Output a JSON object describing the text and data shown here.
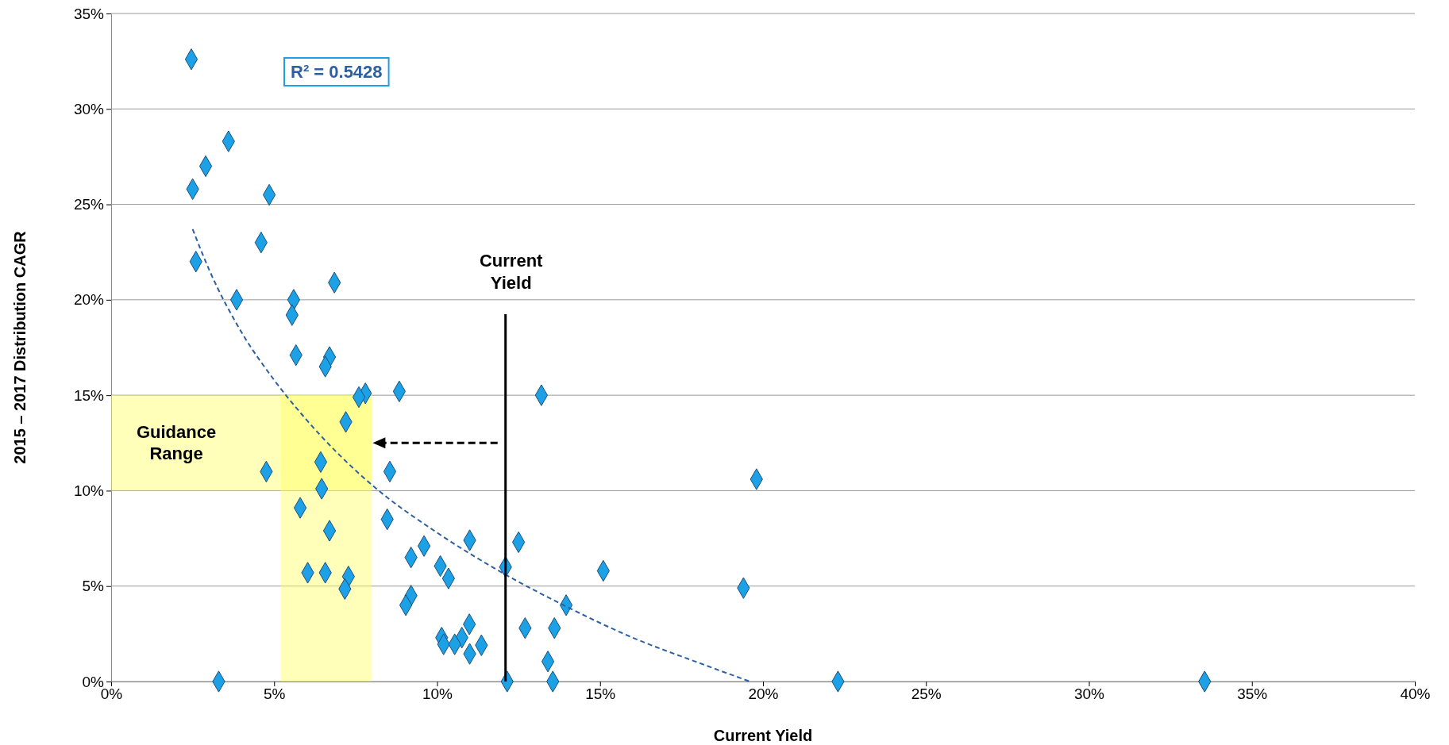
{
  "chart_data": {
    "type": "scatter",
    "xlabel": "Current Yield",
    "ylabel": "2015 – 2017 Distribution CAGR",
    "marker": "diamond",
    "grid": "y",
    "xlim": [
      0,
      40
    ],
    "xticks": [
      {
        "value": 0,
        "label": "0%"
      },
      {
        "value": 5,
        "label": "5%"
      },
      {
        "value": 10,
        "label": "10%"
      },
      {
        "value": 15,
        "label": "15%"
      },
      {
        "value": 20,
        "label": "20%"
      },
      {
        "value": 25,
        "label": "25%"
      },
      {
        "value": 30,
        "label": "30%"
      },
      {
        "value": 35,
        "label": "35%"
      },
      {
        "value": 40,
        "label": "40%"
      }
    ],
    "ylim": [
      0,
      35
    ],
    "yticks": [
      {
        "value": 0,
        "label": "0%"
      },
      {
        "value": 5,
        "label": "5%"
      },
      {
        "value": 10,
        "label": "10%"
      },
      {
        "value": 15,
        "label": "15%"
      },
      {
        "value": 20,
        "label": "20%"
      },
      {
        "value": 25,
        "label": "25%"
      },
      {
        "value": 30,
        "label": "30%"
      },
      {
        "value": 35,
        "label": "35%"
      }
    ],
    "series": [
      {
        "color": "#1ca0e6",
        "x": [
          2.46,
          3.6,
          2.9,
          2.5,
          4.85,
          4.6,
          2.6,
          3.85,
          5.6,
          6.85,
          5.55,
          5.67,
          6.7,
          6.57,
          7.8,
          7.6,
          8.84,
          13.2,
          7.2,
          6.43,
          4.76,
          8.55,
          19.8,
          6.46,
          5.8,
          8.47,
          6.7,
          9.6,
          11.0,
          12.5,
          9.2,
          10.1,
          12.1,
          15.1,
          10.35,
          6.03,
          6.57,
          7.28,
          7.17,
          19.4,
          9.2,
          9.04,
          13.96,
          10.99,
          12.7,
          13.6,
          10.14,
          10.76,
          10.2,
          10.54,
          11.36,
          11.0,
          13.4,
          3.3,
          12.15,
          13.55,
          22.3,
          33.55
        ],
        "values": [
          32.6,
          28.3,
          27.0,
          25.8,
          25.5,
          23.0,
          22.0,
          20.0,
          20.0,
          20.9,
          19.2,
          17.1,
          17.0,
          16.5,
          15.1,
          14.9,
          15.2,
          15.0,
          13.6,
          11.5,
          11.0,
          11.0,
          10.6,
          10.1,
          9.1,
          8.5,
          7.9,
          7.1,
          7.4,
          7.3,
          6.5,
          6.05,
          6.0,
          5.8,
          5.4,
          5.7,
          5.7,
          5.5,
          4.85,
          4.9,
          4.5,
          4.0,
          4.0,
          3.0,
          2.8,
          2.8,
          2.3,
          2.3,
          1.95,
          1.95,
          1.9,
          1.45,
          1.05,
          0,
          0,
          0,
          0,
          0
        ]
      },
      {
        "type": "line",
        "marker": "none",
        "line_style": "dashed",
        "color": "#2e5fa0",
        "x": [
          2.5,
          3,
          4,
          5,
          6,
          8,
          10,
          12,
          14,
          16,
          18,
          19.6
        ],
        "values": [
          23.7,
          21.6,
          18.3,
          15.8,
          13.7,
          10.3,
          7.8,
          5.7,
          3.9,
          2.3,
          1.0,
          0
        ]
      }
    ],
    "bands": [
      {
        "axis": "y",
        "from": 10,
        "to": 15,
        "label": "Guidance Range",
        "color": "#ffff66"
      },
      {
        "axis": "x",
        "from": 5.2,
        "to": 8,
        "color": "#ffff66"
      }
    ],
    "ref_lines": [
      {
        "axis": "x",
        "value": 12.1,
        "label": "Current Yield",
        "color": "#000000"
      }
    ],
    "annotations": [
      "R² = 0.5428"
    ]
  }
}
